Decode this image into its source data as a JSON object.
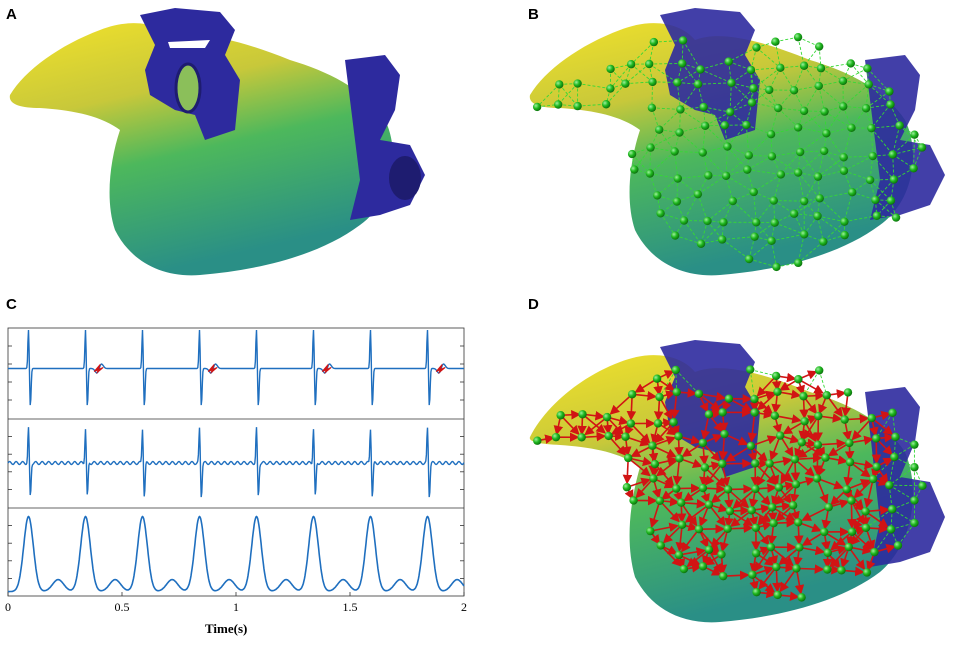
{
  "panels": {
    "a": {
      "letter": "A"
    },
    "b": {
      "letter": "B"
    },
    "c": {
      "letter": "C"
    },
    "d": {
      "letter": "D"
    }
  },
  "colors": {
    "surface_yellow": "#f5e62a",
    "surface_green": "#4fb85f",
    "surface_teal": "#2a9a8a",
    "patch_blue": "#2d2a9e",
    "node_green": "#1fb81f",
    "edge_green": "#35d835",
    "arrow_red": "#d11414",
    "trace_blue": "#1f6fbf"
  },
  "chart_data": {
    "type": "line",
    "xlabel": "Time(s)",
    "xlim": [
      0,
      2
    ],
    "x_ticks": [
      "0",
      "0.5",
      "1",
      "1.5",
      "2"
    ],
    "subplots": [
      {
        "name": "",
        "beats_s": [
          0.09,
          0.34,
          0.59,
          0.84,
          1.09,
          1.34,
          1.59,
          1.84
        ],
        "marked_deflections_s": [
          0.4,
          0.9,
          1.4,
          1.9
        ]
      },
      {
        "name": "",
        "beats_s": [
          0.09,
          0.34,
          0.59,
          0.84,
          1.09,
          1.34,
          1.59,
          1.84
        ]
      },
      {
        "name": "",
        "peaks_s": [
          0.09,
          0.34,
          0.59,
          0.84,
          1.09,
          1.34,
          1.59,
          1.84
        ]
      }
    ],
    "grid": false
  }
}
